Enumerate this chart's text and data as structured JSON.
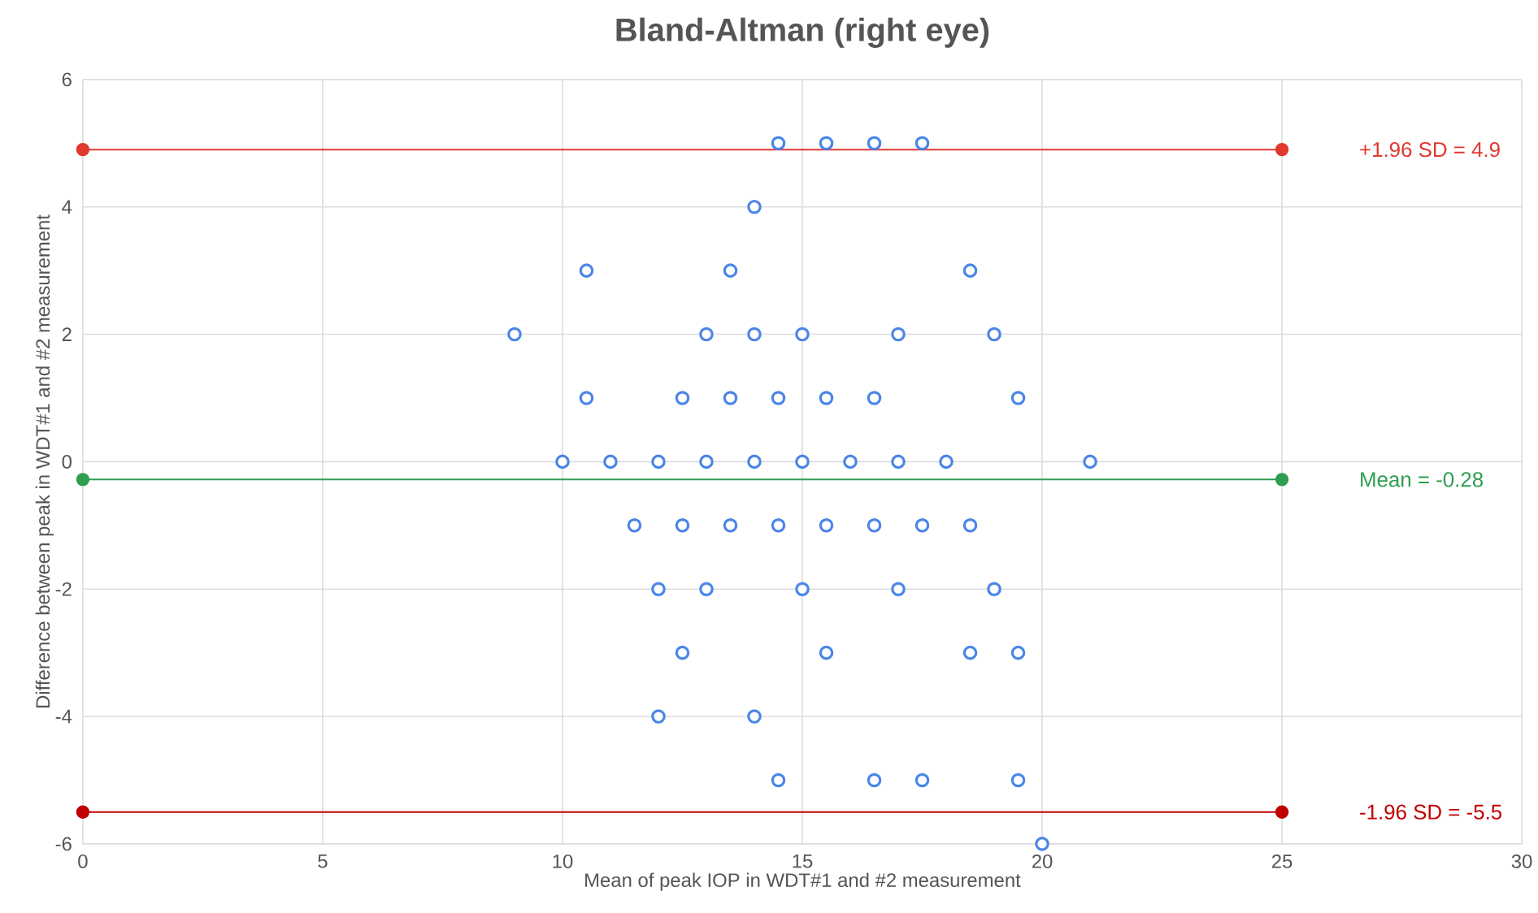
{
  "chart_data": {
    "type": "scatter",
    "title": "Bland-Altman (right eye)",
    "xlabel": "Mean of peak IOP in WDT#1 and #2 measurement",
    "ylabel": "Difference between peak in WDT#1 and #2 measurement",
    "xlim": [
      0,
      30
    ],
    "ylim": [
      -6,
      6
    ],
    "xticks": [
      0,
      5,
      10,
      15,
      20,
      25,
      30
    ],
    "yticks": [
      -6,
      -4,
      -2,
      0,
      2,
      4,
      6
    ],
    "grid": true,
    "marker": "circle",
    "series": [
      {
        "color": "#4a86e8",
        "x": [
          14.5,
          15.5,
          16.5,
          17.5,
          14,
          10.5,
          13.5,
          18.5,
          9,
          13,
          14,
          15,
          17,
          19,
          10.5,
          12.5,
          13.5,
          14.5,
          15.5,
          16.5,
          19.5,
          10,
          11,
          12,
          13,
          14,
          15,
          16,
          17,
          18,
          21,
          11.5,
          12.5,
          13.5,
          14.5,
          15.5,
          16.5,
          17.5,
          18.5,
          12,
          13,
          15,
          17,
          19,
          12.5,
          15.5,
          18.5,
          19.5,
          12,
          14,
          14.5,
          16.5,
          17.5,
          19.5,
          20
        ],
        "values": [
          5,
          5,
          5,
          5,
          4,
          3,
          3,
          3,
          2,
          2,
          2,
          2,
          2,
          2,
          1,
          1,
          1,
          1,
          1,
          1,
          1,
          0,
          0,
          0,
          0,
          0,
          0,
          0,
          0,
          0,
          0,
          -1,
          -1,
          -1,
          -1,
          -1,
          -1,
          -1,
          -1,
          -2,
          -2,
          -2,
          -2,
          -2,
          -3,
          -3,
          -3,
          -3,
          -4,
          -4,
          -5,
          -5,
          -5,
          -5,
          -6
        ]
      },
      {
        "type": "line",
        "name": "+1.96 SD = 4.9",
        "color": "#e0392f",
        "x": [
          0,
          25
        ],
        "values": [
          4.9,
          4.9
        ]
      },
      {
        "type": "line",
        "name": "Mean = -0.28",
        "color": "#2e9e50",
        "x": [
          0,
          25
        ],
        "values": [
          -0.28,
          -0.28
        ]
      },
      {
        "type": "line",
        "name": "-1.96 SD = -5.5",
        "color": "#c00000",
        "x": [
          0,
          25
        ],
        "values": [
          -5.5,
          -5.5
        ]
      }
    ]
  }
}
